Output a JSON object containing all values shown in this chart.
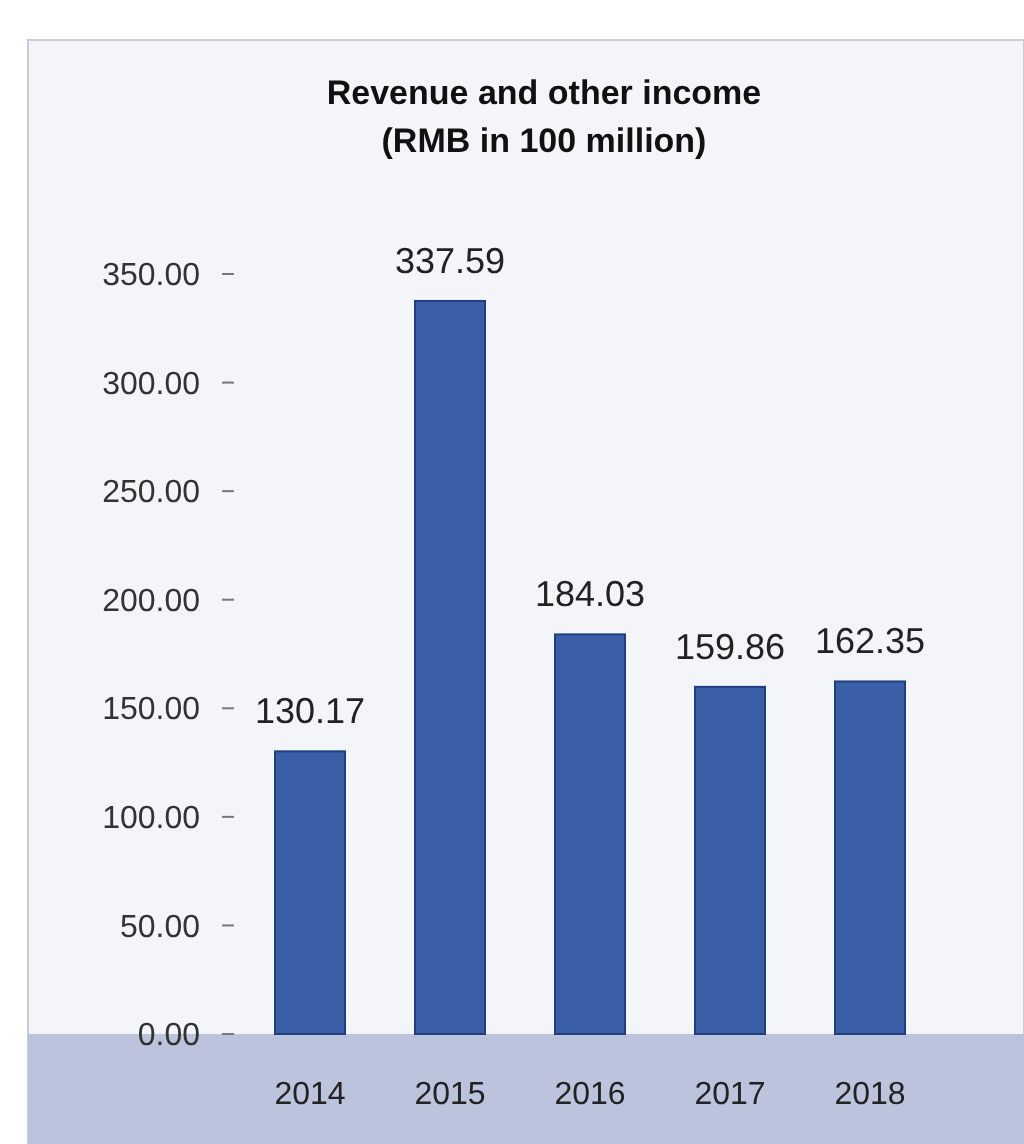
{
  "chart_data": {
    "type": "bar",
    "title": "Revenue and other income\n(RMB in 100 million)",
    "categories": [
      "2014",
      "2015",
      "2016",
      "2017",
      "2018"
    ],
    "values": [
      130.17,
      337.59,
      184.03,
      159.86,
      162.35
    ],
    "color": "#3b5fa6",
    "data_labels": true,
    "ylim": [
      0,
      350
    ],
    "yticks": [
      {
        "value": 0,
        "label": "0.00"
      },
      {
        "value": 50,
        "label": "50.00"
      },
      {
        "value": 100,
        "label": "100.00"
      },
      {
        "value": 150,
        "label": "150.00"
      },
      {
        "value": 200,
        "label": "200.00"
      },
      {
        "value": 250,
        "label": "250.00"
      },
      {
        "value": 300,
        "label": "300.00"
      },
      {
        "value": 350,
        "label": "350.00"
      }
    ],
    "grid": false
  }
}
